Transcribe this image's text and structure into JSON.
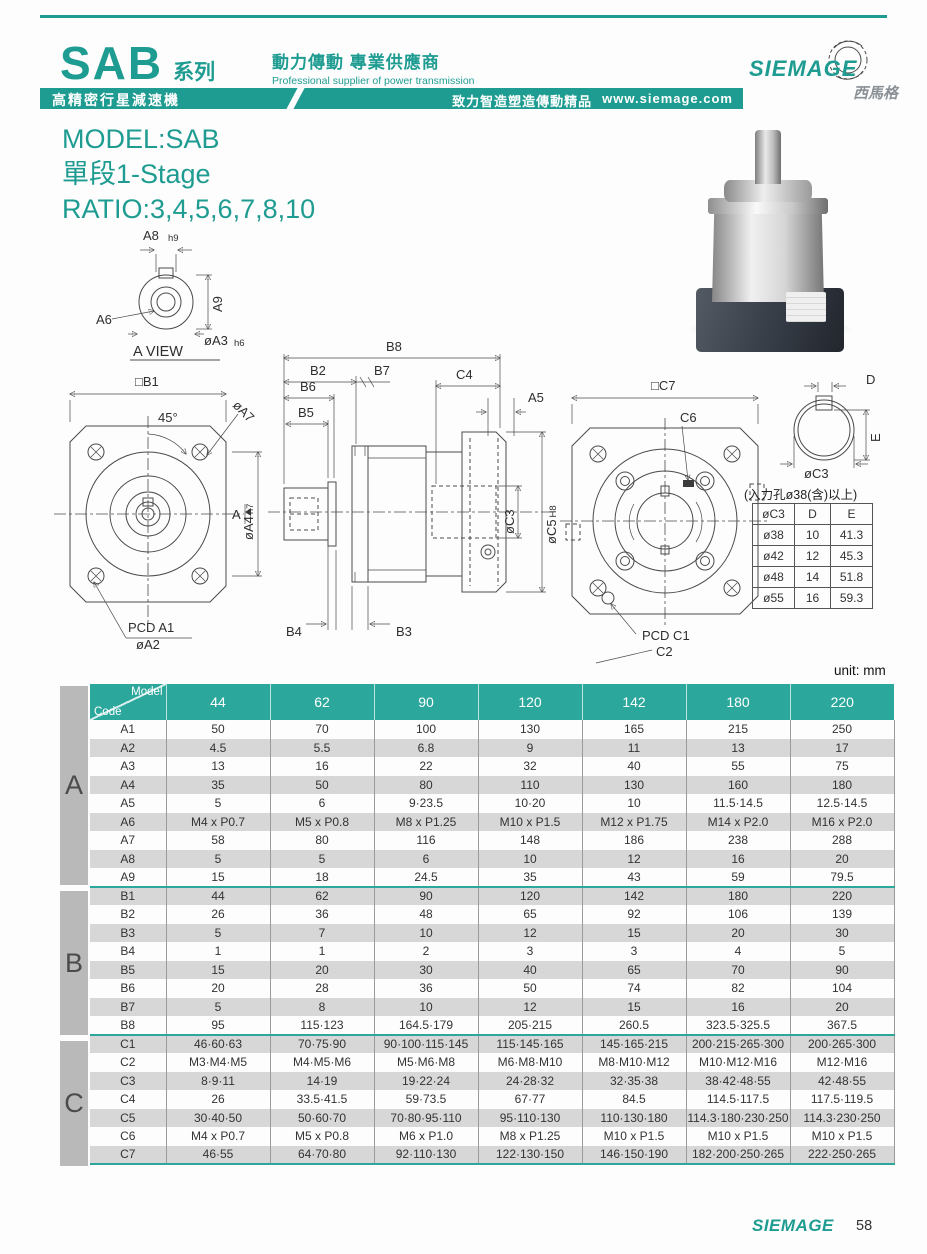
{
  "colors": {
    "accent": "#1e9c91",
    "table_header": "#2ca79c",
    "row_alt": "#d7d7d7",
    "section_bg": "#b9b9b9"
  },
  "header": {
    "series_title": "SAB",
    "series_suffix": "系列",
    "tagline_zh": "動力傳動 專業供應商",
    "tagline_en": "Professional supplier of power transmission",
    "bar_left": "高精密行星減速機",
    "bar_right_zh": "致力智造塑造傳動精品",
    "bar_url": "www.siemage.com",
    "logo_text": "SIEMAGE",
    "logo_sub": "西馬格"
  },
  "model_block": {
    "line1": "MODEL:SAB",
    "line2": "單段1-Stage",
    "line3": "RATIO:3,4,5,6,7,8,10"
  },
  "drawings": {
    "a_view": {
      "a8": "A8",
      "h9": "h9",
      "a9": "A9",
      "a6": "A6",
      "a3": "øA3",
      "h6": "h6",
      "title": "A VIEW"
    },
    "front": {
      "b1": "□B1",
      "deg": "45°",
      "a7": "øA7",
      "a": "A",
      "a4": "øA4",
      "h7": "h7",
      "pcd": "PCD A1",
      "a2": "øA2"
    },
    "side": {
      "b8": "B8",
      "b2": "B2",
      "b7": "B7",
      "c4": "C4",
      "a5": "A5",
      "b6": "B6",
      "b5": "B5",
      "c3": "øC3",
      "c5": "øC5",
      "h8": "H8",
      "b4": "B4",
      "b3": "B3"
    },
    "rear": {
      "c7": "□C7",
      "c6": "C6",
      "pcd": "PCD C1",
      "c2": "C2"
    },
    "detail": {
      "d": "D",
      "e": "E",
      "c3": "øC3"
    }
  },
  "input_hole_table": {
    "caption": "(入力孔ø38(含)以上)",
    "headers": [
      "øC3",
      "D",
      "E"
    ],
    "rows": [
      [
        "ø38",
        "10",
        "41.3"
      ],
      [
        "ø42",
        "12",
        "45.3"
      ],
      [
        "ø48",
        "14",
        "51.8"
      ],
      [
        "ø55",
        "16",
        "59.3"
      ]
    ]
  },
  "unit_label": "unit: mm",
  "dim_table": {
    "corner": {
      "top": "Model",
      "bottom": "Code"
    },
    "columns": [
      "44",
      "62",
      "90",
      "120",
      "142",
      "180",
      "220"
    ],
    "sections": [
      {
        "label": "A",
        "rows": [
          {
            "code": "A1",
            "values": [
              "50",
              "70",
              "100",
              "130",
              "165",
              "215",
              "250"
            ]
          },
          {
            "code": "A2",
            "values": [
              "4.5",
              "5.5",
              "6.8",
              "9",
              "11",
              "13",
              "17"
            ]
          },
          {
            "code": "A3",
            "values": [
              "13",
              "16",
              "22",
              "32",
              "40",
              "55",
              "75"
            ]
          },
          {
            "code": "A4",
            "values": [
              "35",
              "50",
              "80",
              "110",
              "130",
              "160",
              "180"
            ]
          },
          {
            "code": "A5",
            "values": [
              "5",
              "6",
              "9·23.5",
              "10·20",
              "10",
              "11.5·14.5",
              "12.5·14.5"
            ]
          },
          {
            "code": "A6",
            "values": [
              "M4 x P0.7",
              "M5 x P0.8",
              "M8 x P1.25",
              "M10 x P1.5",
              "M12 x P1.75",
              "M14 x P2.0",
              "M16 x P2.0"
            ]
          },
          {
            "code": "A7",
            "values": [
              "58",
              "80",
              "116",
              "148",
              "186",
              "238",
              "288"
            ]
          },
          {
            "code": "A8",
            "values": [
              "5",
              "5",
              "6",
              "10",
              "12",
              "16",
              "20"
            ]
          },
          {
            "code": "A9",
            "values": [
              "15",
              "18",
              "24.5",
              "35",
              "43",
              "59",
              "79.5"
            ]
          }
        ]
      },
      {
        "label": "B",
        "rows": [
          {
            "code": "B1",
            "values": [
              "44",
              "62",
              "90",
              "120",
              "142",
              "180",
              "220"
            ]
          },
          {
            "code": "B2",
            "values": [
              "26",
              "36",
              "48",
              "65",
              "92",
              "106",
              "139"
            ]
          },
          {
            "code": "B3",
            "values": [
              "5",
              "7",
              "10",
              "12",
              "15",
              "20",
              "30"
            ]
          },
          {
            "code": "B4",
            "values": [
              "1",
              "1",
              "2",
              "3",
              "3",
              "4",
              "5"
            ]
          },
          {
            "code": "B5",
            "values": [
              "15",
              "20",
              "30",
              "40",
              "65",
              "70",
              "90"
            ]
          },
          {
            "code": "B6",
            "values": [
              "20",
              "28",
              "36",
              "50",
              "74",
              "82",
              "104"
            ]
          },
          {
            "code": "B7",
            "values": [
              "5",
              "8",
              "10",
              "12",
              "15",
              "16",
              "20"
            ]
          },
          {
            "code": "B8",
            "values": [
              "95",
              "115·123",
              "164.5·179",
              "205·215",
              "260.5",
              "323.5·325.5",
              "367.5"
            ]
          }
        ]
      },
      {
        "label": "C",
        "rows": [
          {
            "code": "C1",
            "values": [
              "46·60·63",
              "70·75·90",
              "90·100·115·145",
              "115·145·165",
              "145·165·215",
              "200·215·265·300",
              "200·265·300"
            ]
          },
          {
            "code": "C2",
            "values": [
              "M3·M4·M5",
              "M4·M5·M6",
              "M5·M6·M8",
              "M6·M8·M10",
              "M8·M10·M12",
              "M10·M12·M16",
              "M12·M16"
            ]
          },
          {
            "code": "C3",
            "values": [
              "8·9·11",
              "14·19",
              "19·22·24",
              "24·28·32",
              "32·35·38",
              "38·42·48·55",
              "42·48·55"
            ]
          },
          {
            "code": "C4",
            "values": [
              "26",
              "33.5·41.5",
              "59·73.5",
              "67·77",
              "84.5",
              "114.5·117.5",
              "117.5·119.5"
            ]
          },
          {
            "code": "C5",
            "values": [
              "30·40·50",
              "50·60·70",
              "70·80·95·110",
              "95·110·130",
              "110·130·180",
              "114.3·180·230·250",
              "114.3·230·250"
            ]
          },
          {
            "code": "C6",
            "values": [
              "M4 x P0.7",
              "M5 x P0.8",
              "M6 x P1.0",
              "M8 x P1.25",
              "M10 x P1.5",
              "M10 x P1.5",
              "M10 x P1.5"
            ]
          },
          {
            "code": "C7",
            "values": [
              "46·55",
              "64·70·80",
              "92·110·130",
              "122·130·150",
              "146·150·190",
              "182·200·250·265",
              "222·250·265"
            ]
          }
        ]
      }
    ]
  },
  "footer": {
    "logo_text": "SIEMAGE",
    "page_number": "58"
  }
}
